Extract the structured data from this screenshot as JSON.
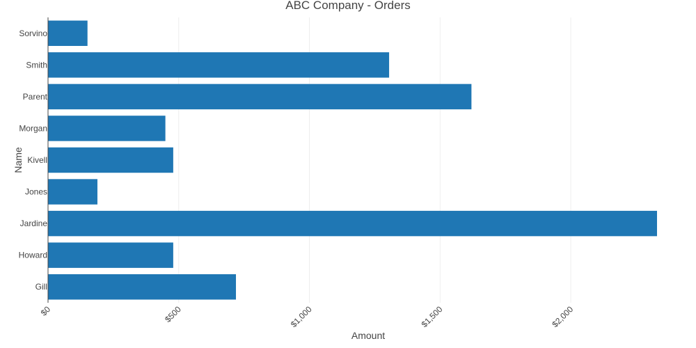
{
  "chart_data": {
    "type": "bar",
    "orientation": "horizontal",
    "title": "ABC Company - Orders",
    "xlabel": "Amount",
    "ylabel": "Name",
    "categories": [
      "Gill",
      "Howard",
      "Jardine",
      "Jones",
      "Kivell",
      "Morgan",
      "Parent",
      "Smith",
      "Sorvino"
    ],
    "values": [
      719,
      479,
      2330,
      189,
      479,
      449,
      1620,
      1305,
      151
    ],
    "x_ticks": [
      0,
      500,
      1000,
      1500,
      2000
    ],
    "x_tick_labels": [
      "$0",
      "$500",
      "$1,000",
      "$1,500",
      "$2,000"
    ],
    "xlim": [
      0,
      2330
    ],
    "grid": true,
    "bar_color": "#1f77b4"
  }
}
